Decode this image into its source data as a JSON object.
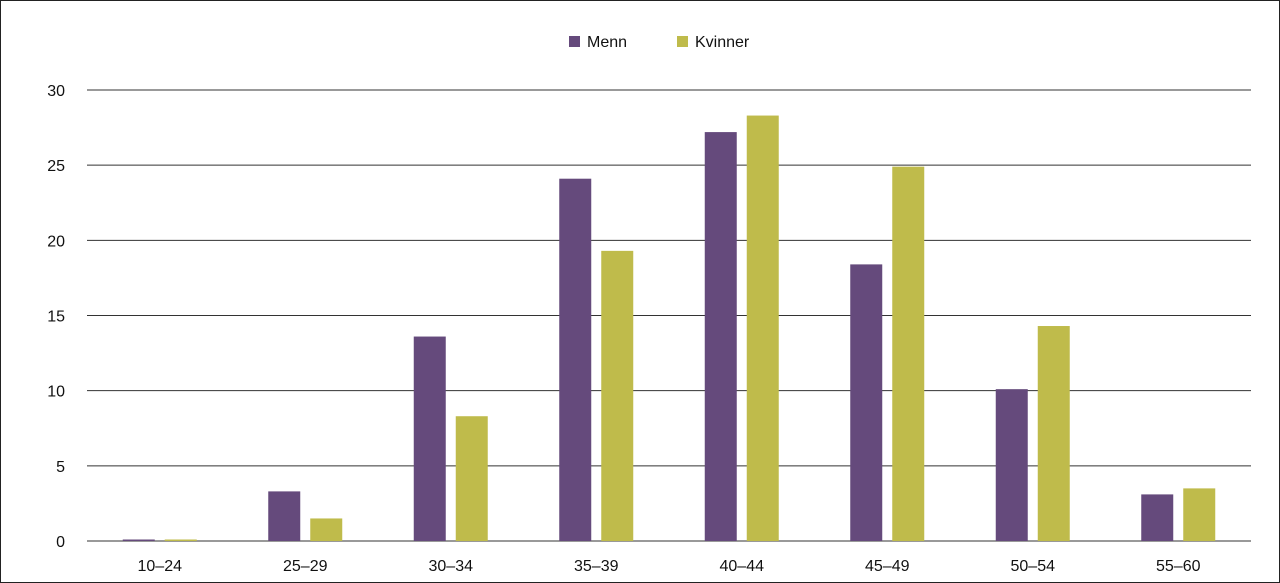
{
  "chart_data": {
    "type": "bar",
    "categories": [
      "10–24",
      "25–29",
      "30–34",
      "35–39",
      "40–44",
      "45–49",
      "50–54",
      "55–60"
    ],
    "series": [
      {
        "name": "Menn",
        "color": "#654a7c",
        "values": [
          0.1,
          3.3,
          13.6,
          24.1,
          27.2,
          18.4,
          10.1,
          3.1
        ]
      },
      {
        "name": "Kvinner",
        "color": "#bfbb4b",
        "values": [
          0.1,
          1.5,
          8.3,
          19.3,
          28.3,
          24.9,
          14.3,
          3.5
        ]
      }
    ],
    "yticks": [
      "0",
      "5",
      "10",
      "15",
      "20",
      "25",
      "30"
    ],
    "ylim": [
      0,
      30
    ],
    "grid": true,
    "legend_position": "top-center",
    "title": "",
    "xlabel": "",
    "ylabel": ""
  }
}
